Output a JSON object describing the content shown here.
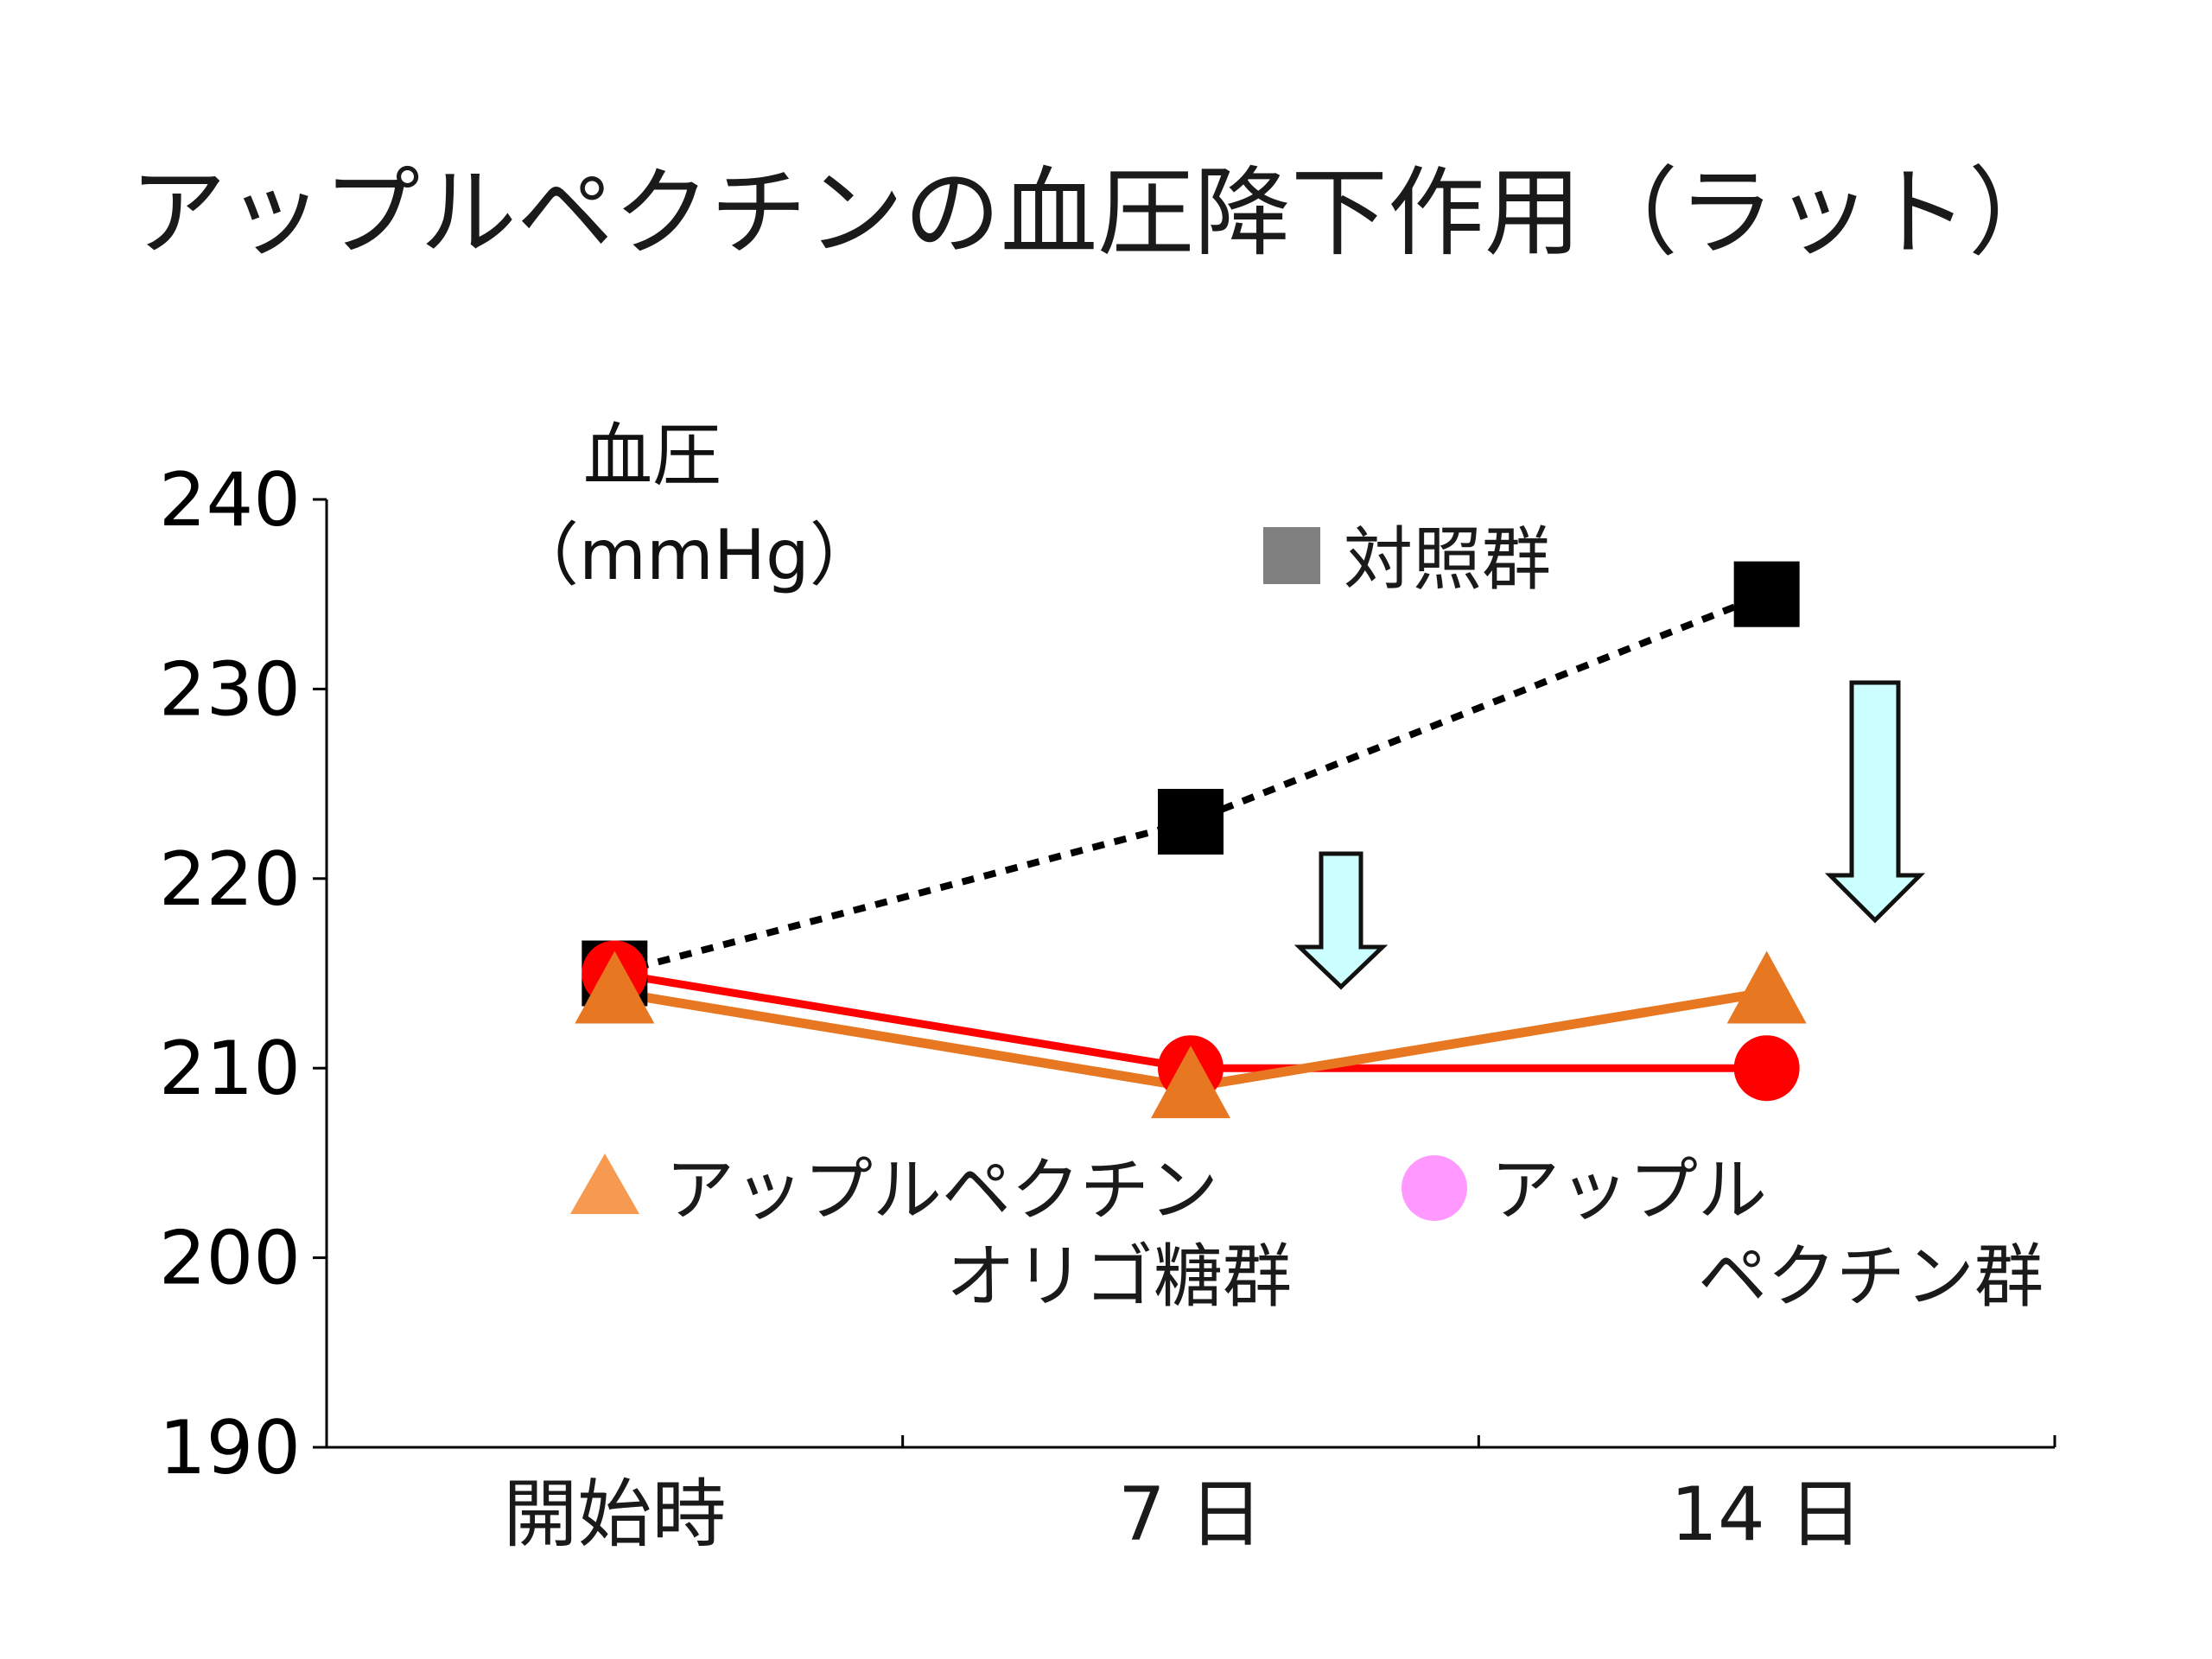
{
  "title": "アップルペクチンの血圧降下作用（ラット）",
  "y_axis_label": {
    "line1": "血圧",
    "line2": "（mmHg）"
  },
  "legend": {
    "control": "対照群",
    "oligo_line1": "アップルペクチン",
    "oligo_line2": "オリゴ糖群",
    "pectin_line1": "アップル",
    "pectin_line2": "ペクチン群"
  },
  "colors": {
    "control": "#000000",
    "pectin": "#ff0000",
    "oligo": "#e87722",
    "legend_control": "#808080",
    "legend_pectin": "#ff99ff",
    "legend_oligo": "#f59a50",
    "arrow_fill": "#ccffff"
  },
  "chart_data": {
    "type": "line",
    "title": "アップルペクチンの血圧降下作用（ラット）",
    "xlabel": "",
    "ylabel": "血圧（mmHg）",
    "categories": [
      "開始時",
      "7 日",
      "14 日"
    ],
    "ylim": [
      190,
      240
    ],
    "yticks": [
      "190",
      "200",
      "210",
      "220",
      "230",
      "240"
    ],
    "grid": false,
    "series": [
      {
        "name": "対照群",
        "marker": "square",
        "line": "dashed",
        "values": [
          215,
          223,
          235
        ]
      },
      {
        "name": "アップルペクチン群",
        "marker": "circle",
        "line": "solid",
        "values": [
          215,
          210,
          210
        ]
      },
      {
        "name": "アップルペクチンオリゴ糖群",
        "marker": "triangle",
        "line": "solid",
        "values": [
          214,
          209,
          214
        ]
      }
    ]
  }
}
